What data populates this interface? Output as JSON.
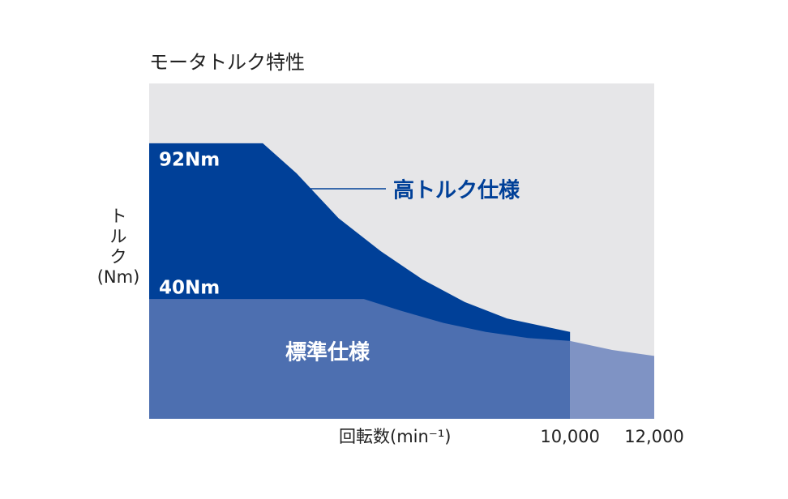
{
  "chart_data": {
    "type": "area",
    "title": "モータトルク特性",
    "x_label": "回転数(min⁻¹)",
    "y_label": [
      "ト",
      "ル",
      "ク",
      "(Nm)"
    ],
    "xlim": [
      0,
      12000
    ],
    "ylim": [
      0,
      112
    ],
    "xticks": [
      {
        "value": 10000,
        "label": "10,000"
      },
      {
        "value": 12000,
        "label": "12,000"
      }
    ],
    "background": "#e6e6e8",
    "series": [
      {
        "name": "高トルク仕様",
        "color": "#004098",
        "x": [
          0,
          2700,
          3500,
          4500,
          5500,
          6500,
          7500,
          8500,
          10000
        ],
        "values": [
          92,
          92,
          82,
          67,
          56,
          46.5,
          39,
          33.5,
          29
        ]
      },
      {
        "name": "標準仕様",
        "color": "#4d6fb0",
        "x": [
          0,
          5100,
          6000,
          7000,
          8000,
          9000,
          10000
        ],
        "values": [
          40,
          40,
          36,
          32,
          29,
          27,
          26
        ]
      },
      {
        "color": "#7f93c4",
        "x": [
          10000,
          11000,
          12000
        ],
        "values": [
          26,
          23,
          21
        ]
      }
    ],
    "annotations": [
      "92Nm",
      "40Nm"
    ]
  }
}
